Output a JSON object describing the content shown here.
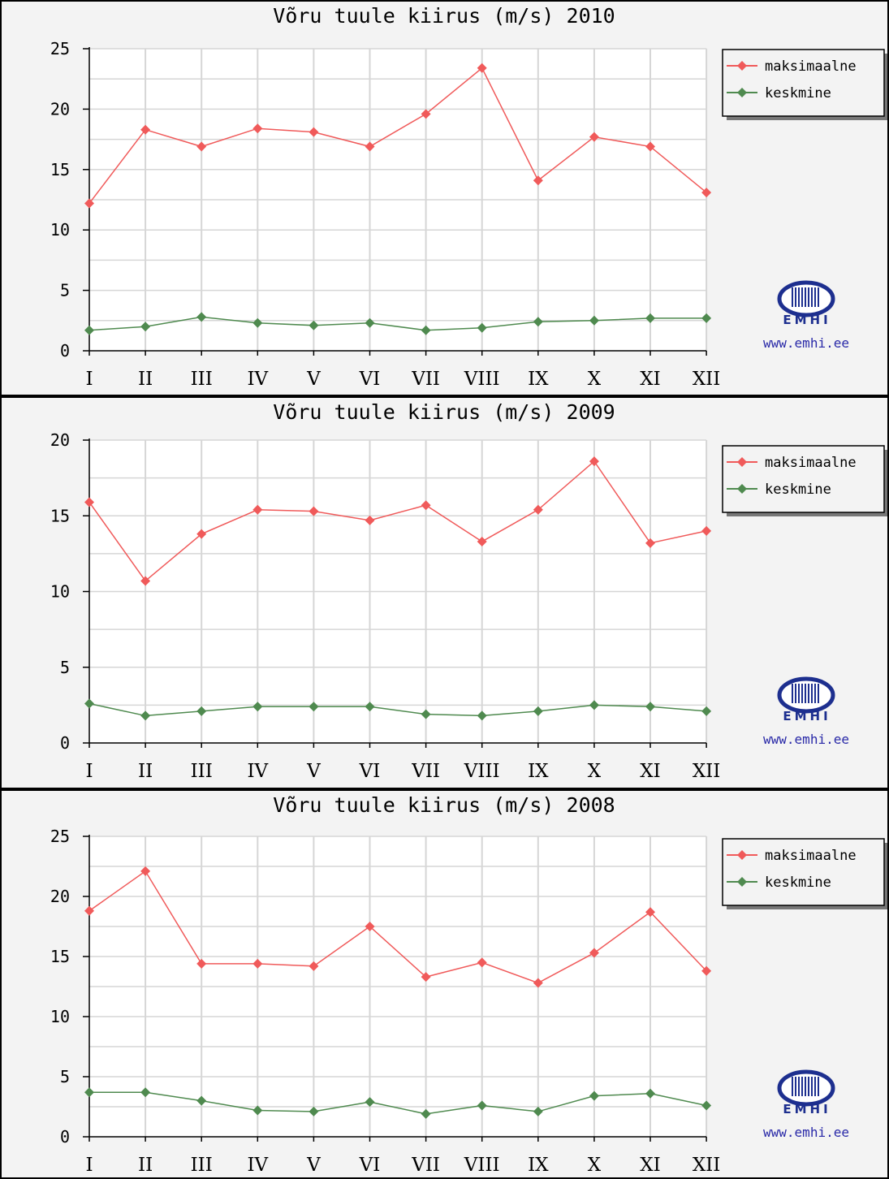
{
  "logo": {
    "brand": "EMHI",
    "site": "www.emhi.ee"
  },
  "legend": {
    "max_label": "maksimaalne",
    "mean_label": "keskmine"
  },
  "colors": {
    "max": "#f05a5a",
    "mean": "#4f8a4f",
    "grid": "#d6d6d6",
    "plot_bg": "#ffffff",
    "panel_bg": "#f3f3f3"
  },
  "chart_data": [
    {
      "type": "line",
      "title": "Võru tuule kiirus (m/s) 2010",
      "categories": [
        "I",
        "II",
        "III",
        "IV",
        "V",
        "VI",
        "VII",
        "VIII",
        "IX",
        "X",
        "XI",
        "XII"
      ],
      "ylim": [
        0,
        25
      ],
      "yticks": [
        0,
        5,
        10,
        15,
        20,
        25
      ],
      "grid": true,
      "legend_position": "top-right",
      "series": [
        {
          "name": "maksimaalne",
          "color": "#f05a5a",
          "values": [
            12.2,
            18.3,
            16.9,
            18.4,
            18.1,
            16.9,
            19.6,
            23.4,
            14.1,
            17.7,
            16.9,
            13.1
          ]
        },
        {
          "name": "keskmine",
          "color": "#4f8a4f",
          "values": [
            1.7,
            2.0,
            2.8,
            2.3,
            2.1,
            2.3,
            1.7,
            1.9,
            2.4,
            2.5,
            2.7,
            2.7
          ]
        }
      ]
    },
    {
      "type": "line",
      "title": "Võru tuule kiirus (m/s) 2009",
      "categories": [
        "I",
        "II",
        "III",
        "IV",
        "V",
        "VI",
        "VII",
        "VIII",
        "IX",
        "X",
        "XI",
        "XII"
      ],
      "ylim": [
        0,
        20
      ],
      "yticks": [
        0,
        5,
        10,
        15,
        20
      ],
      "grid": true,
      "legend_position": "top-right",
      "series": [
        {
          "name": "maksimaalne",
          "color": "#f05a5a",
          "values": [
            15.9,
            10.7,
            13.8,
            15.4,
            15.3,
            14.7,
            15.7,
            13.3,
            15.4,
            18.6,
            13.2,
            14.0
          ]
        },
        {
          "name": "keskmine",
          "color": "#4f8a4f",
          "values": [
            2.6,
            1.8,
            2.1,
            2.4,
            2.4,
            2.4,
            1.9,
            1.8,
            2.1,
            2.5,
            2.4,
            2.1
          ]
        }
      ]
    },
    {
      "type": "line",
      "title": "Võru tuule kiirus (m/s) 2008",
      "categories": [
        "I",
        "II",
        "III",
        "IV",
        "V",
        "VI",
        "VII",
        "VIII",
        "IX",
        "X",
        "XI",
        "XII"
      ],
      "ylim": [
        0,
        25
      ],
      "yticks": [
        0,
        5,
        10,
        15,
        20,
        25
      ],
      "grid": true,
      "legend_position": "top-right",
      "series": [
        {
          "name": "maksimaalne",
          "color": "#f05a5a",
          "values": [
            18.8,
            22.1,
            14.4,
            14.4,
            14.2,
            17.5,
            13.3,
            14.5,
            12.8,
            15.3,
            18.7,
            13.8
          ]
        },
        {
          "name": "keskmine",
          "color": "#4f8a4f",
          "values": [
            3.7,
            3.7,
            3.0,
            2.2,
            2.1,
            2.9,
            1.9,
            2.6,
            2.1,
            3.4,
            3.6,
            2.6
          ]
        }
      ]
    }
  ]
}
